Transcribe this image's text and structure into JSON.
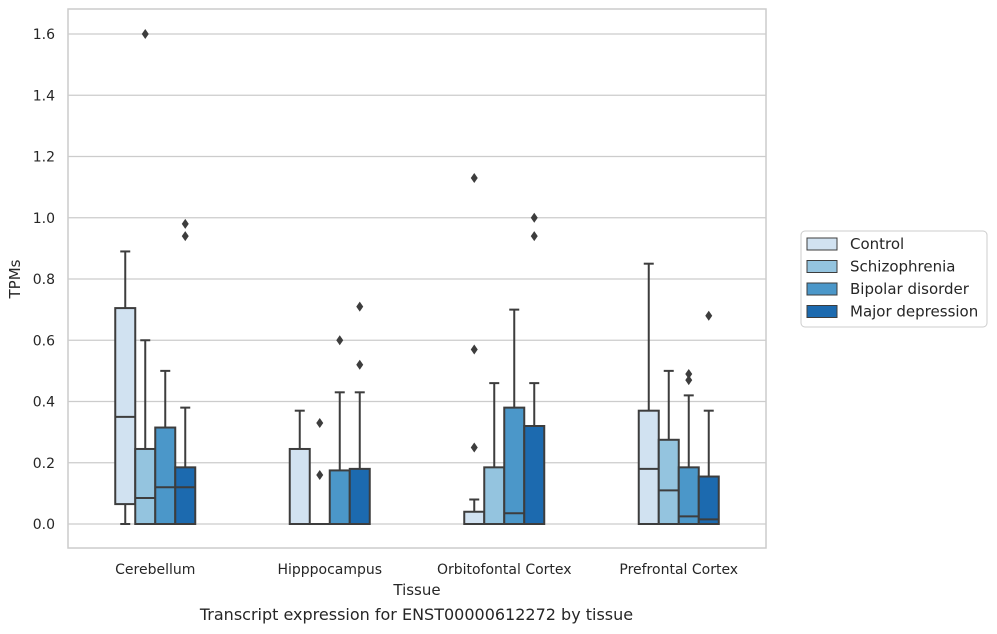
{
  "caption": "Transcript expression for ENST00000612272 by tissue",
  "colors": {
    "series": [
      "#d1e2f1",
      "#94c4df",
      "#4b97c9",
      "#1c6aaf"
    ],
    "edge": "#3d3d3d",
    "grid": "#cccccc",
    "frame": "#cccccc"
  },
  "chart_data": {
    "type": "box",
    "xlabel": "Tissue",
    "ylabel": "TPMs",
    "ylim": [
      -0.08,
      1.68
    ],
    "yticks": [
      "0.0",
      "0.2",
      "0.4",
      "0.6",
      "0.8",
      "1.0",
      "1.2",
      "1.4",
      "1.6"
    ],
    "grid": "horizontal",
    "legend_position": "right-center",
    "categories": [
      "Cerebellum",
      "Hipppocampus",
      "Orbitofontal Cortex",
      "Prefrontal Cortex"
    ],
    "series": [
      {
        "name": "Control",
        "boxes": [
          {
            "whislo": 0.0,
            "q1": 0.065,
            "med": 0.35,
            "q3": 0.705,
            "whishi": 0.89,
            "fliers": []
          },
          {
            "whislo": 0.0,
            "q1": 0.0,
            "med": 0.0,
            "q3": 0.245,
            "whishi": 0.37,
            "fliers": []
          },
          {
            "whislo": 0.0,
            "q1": 0.0,
            "med": 0.0,
            "q3": 0.04,
            "whishi": 0.08,
            "fliers": [
              0.25,
              0.57,
              1.13
            ]
          },
          {
            "whislo": 0.0,
            "q1": 0.0,
            "med": 0.18,
            "q3": 0.37,
            "whishi": 0.85,
            "fliers": []
          }
        ]
      },
      {
        "name": "Schizophrenia",
        "boxes": [
          {
            "whislo": 0.0,
            "q1": 0.0,
            "med": 0.085,
            "q3": 0.245,
            "whishi": 0.6,
            "fliers": [
              1.6
            ]
          },
          {
            "whislo": 0.0,
            "q1": 0.0,
            "med": 0.0,
            "q3": 0.0,
            "whishi": 0.0,
            "fliers": [
              0.16,
              0.33
            ]
          },
          {
            "whislo": 0.0,
            "q1": 0.0,
            "med": 0.0,
            "q3": 0.185,
            "whishi": 0.46,
            "fliers": []
          },
          {
            "whislo": 0.0,
            "q1": 0.0,
            "med": 0.11,
            "q3": 0.275,
            "whishi": 0.5,
            "fliers": []
          }
        ]
      },
      {
        "name": "Bipolar disorder",
        "boxes": [
          {
            "whislo": 0.0,
            "q1": 0.0,
            "med": 0.12,
            "q3": 0.315,
            "whishi": 0.5,
            "fliers": []
          },
          {
            "whislo": 0.0,
            "q1": 0.0,
            "med": 0.0,
            "q3": 0.175,
            "whishi": 0.43,
            "fliers": [
              0.6
            ]
          },
          {
            "whislo": 0.0,
            "q1": 0.0,
            "med": 0.035,
            "q3": 0.38,
            "whishi": 0.7,
            "fliers": []
          },
          {
            "whislo": 0.0,
            "q1": 0.0,
            "med": 0.025,
            "q3": 0.185,
            "whishi": 0.42,
            "fliers": [
              0.47,
              0.49
            ]
          }
        ]
      },
      {
        "name": "Major depression",
        "boxes": [
          {
            "whislo": 0.0,
            "q1": 0.0,
            "med": 0.12,
            "q3": 0.185,
            "whishi": 0.38,
            "fliers": [
              0.94,
              0.98
            ]
          },
          {
            "whislo": 0.0,
            "q1": 0.0,
            "med": 0.0,
            "q3": 0.18,
            "whishi": 0.43,
            "fliers": [
              0.52,
              0.71
            ]
          },
          {
            "whislo": 0.0,
            "q1": 0.0,
            "med": 0.0,
            "q3": 0.32,
            "whishi": 0.46,
            "fliers": [
              0.94,
              1.0
            ]
          },
          {
            "whislo": 0.0,
            "q1": 0.0,
            "med": 0.015,
            "q3": 0.155,
            "whishi": 0.37,
            "fliers": [
              0.68
            ]
          }
        ]
      }
    ]
  }
}
